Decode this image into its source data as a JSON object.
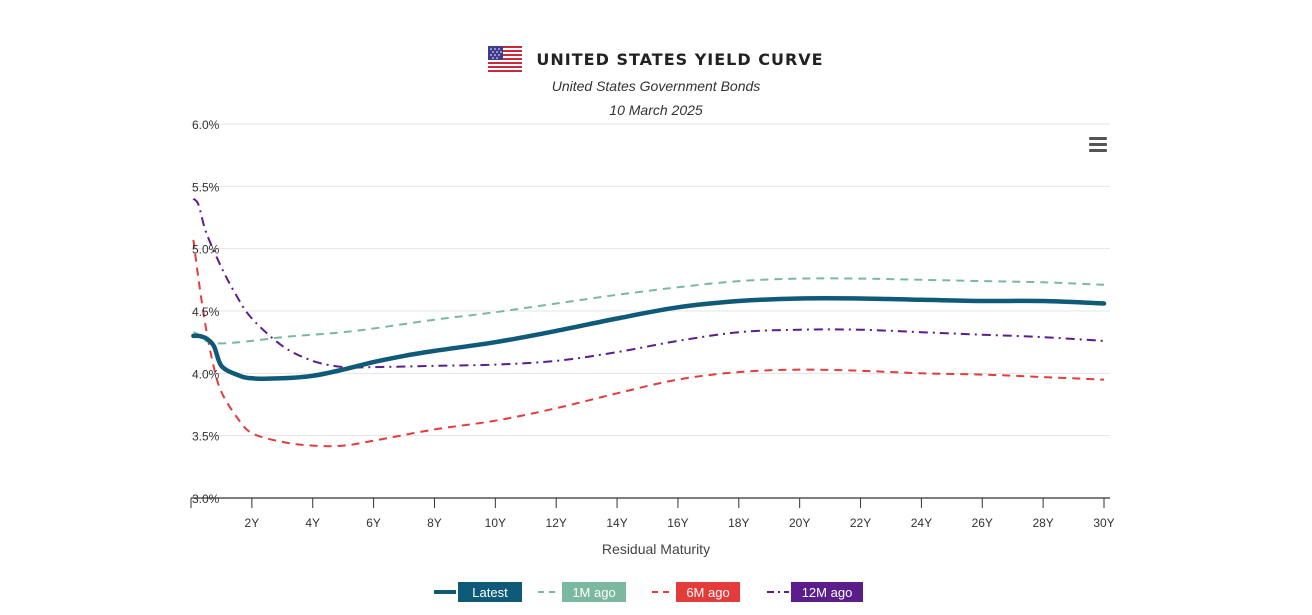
{
  "header": {
    "title": "UNITED STATES YIELD CURVE",
    "subtitle": "United States Government Bonds",
    "date": "10 March 2025",
    "flag_icon": "us-flag-icon"
  },
  "toolbar": {
    "menu_icon": "hamburger-menu-icon"
  },
  "chart_data": {
    "type": "line",
    "xlabel": "Residual Maturity",
    "ylabel": "",
    "xlim": [
      0,
      30
    ],
    "ylim": [
      3.0,
      6.0
    ],
    "x_ticks": [
      {
        "value": 2,
        "label": "2Y"
      },
      {
        "value": 4,
        "label": "4Y"
      },
      {
        "value": 6,
        "label": "6Y"
      },
      {
        "value": 8,
        "label": "8Y"
      },
      {
        "value": 10,
        "label": "10Y"
      },
      {
        "value": 12,
        "label": "12Y"
      },
      {
        "value": 14,
        "label": "14Y"
      },
      {
        "value": 16,
        "label": "16Y"
      },
      {
        "value": 18,
        "label": "18Y"
      },
      {
        "value": 20,
        "label": "20Y"
      },
      {
        "value": 22,
        "label": "22Y"
      },
      {
        "value": 24,
        "label": "24Y"
      },
      {
        "value": 26,
        "label": "26Y"
      },
      {
        "value": 28,
        "label": "28Y"
      },
      {
        "value": 30,
        "label": "30Y"
      }
    ],
    "y_ticks": [
      {
        "value": 3.0,
        "label": "3.0%"
      },
      {
        "value": 3.5,
        "label": "3.5%"
      },
      {
        "value": 4.0,
        "label": "4.0%"
      },
      {
        "value": 4.5,
        "label": "4.5%"
      },
      {
        "value": 5.0,
        "label": "5.0%"
      },
      {
        "value": 5.5,
        "label": "5.5%"
      },
      {
        "value": 6.0,
        "label": "6.0%"
      }
    ],
    "grid": true,
    "legend_position": "bottom",
    "series": [
      {
        "name": "Latest",
        "color": "#0f5a78",
        "dash": "solid",
        "x": [
          0.08,
          0.25,
          0.5,
          0.75,
          1,
          1.5,
          2,
          3,
          4,
          5,
          6,
          7,
          8,
          10,
          12,
          14,
          16,
          18,
          20,
          22,
          24,
          26,
          28,
          30
        ],
        "values": [
          4.3,
          4.3,
          4.28,
          4.22,
          4.06,
          3.99,
          3.96,
          3.96,
          3.98,
          4.03,
          4.09,
          4.14,
          4.18,
          4.25,
          4.34,
          4.44,
          4.53,
          4.58,
          4.6,
          4.6,
          4.59,
          4.58,
          4.58,
          4.56
        ]
      },
      {
        "name": "1M ago",
        "color": "#7ab89f",
        "dash": "dashed",
        "x": [
          0.08,
          0.25,
          0.5,
          1,
          2,
          3,
          4,
          5,
          6,
          8,
          10,
          12,
          14,
          16,
          18,
          20,
          22,
          24,
          26,
          28,
          30
        ],
        "values": [
          4.33,
          4.31,
          4.26,
          4.24,
          4.26,
          4.29,
          4.31,
          4.33,
          4.36,
          4.43,
          4.49,
          4.56,
          4.63,
          4.69,
          4.74,
          4.76,
          4.76,
          4.75,
          4.74,
          4.73,
          4.71
        ]
      },
      {
        "name": "6M ago",
        "color": "#e43b3b",
        "dash": "dashed",
        "x": [
          0.08,
          0.25,
          0.5,
          0.75,
          1,
          1.5,
          2,
          3,
          4,
          5,
          6,
          8,
          10,
          12,
          14,
          16,
          18,
          20,
          22,
          24,
          26,
          28,
          30
        ],
        "values": [
          5.07,
          4.75,
          4.35,
          4.05,
          3.85,
          3.65,
          3.52,
          3.45,
          3.42,
          3.42,
          3.46,
          3.55,
          3.62,
          3.72,
          3.84,
          3.95,
          4.01,
          4.03,
          4.02,
          4.0,
          3.99,
          3.97,
          3.95
        ]
      },
      {
        "name": "12M ago",
        "color": "#5a1d8a",
        "dash": "dashdot",
        "x": [
          0.08,
          0.25,
          0.5,
          1,
          1.5,
          2,
          3,
          4,
          5,
          6,
          8,
          10,
          12,
          14,
          16,
          18,
          20,
          22,
          24,
          26,
          28,
          30
        ],
        "values": [
          5.4,
          5.35,
          5.13,
          4.85,
          4.62,
          4.44,
          4.22,
          4.1,
          4.05,
          4.05,
          4.06,
          4.07,
          4.1,
          4.17,
          4.26,
          4.33,
          4.35,
          4.35,
          4.33,
          4.31,
          4.29,
          4.26
        ]
      }
    ]
  }
}
